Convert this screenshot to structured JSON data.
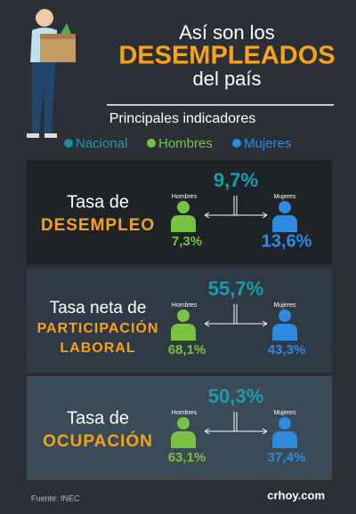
{
  "header": {
    "title_lines": [
      "Así son los",
      "DESEMPLEADOS",
      "del país"
    ],
    "subtitle": "Principales indicadores"
  },
  "legend": [
    "Nacional",
    "Hombres",
    "Mujeres"
  ],
  "indicators": [
    {
      "label_lines": [
        "Tasa de",
        "DESEMPLEO"
      ],
      "nacional": "9,7%",
      "hombres_label": "Hombres",
      "hombres": "7,3%",
      "mujeres_label": "Mujeres",
      "mujeres": "13,6%"
    },
    {
      "label_lines": [
        "Tasa neta de",
        "PARTICIPACIÓN",
        "LABORAL"
      ],
      "nacional": "55,7%",
      "hombres_label": "Hombres",
      "hombres": "68,1%",
      "mujeres_label": "Mujeres",
      "mujeres": "43,3%"
    },
    {
      "label_lines": [
        "Tasa de",
        "OCUPACIÓN"
      ],
      "nacional": "50,3%",
      "hombres_label": "Hombres",
      "hombres": "63,1%",
      "mujeres_label": "Mujeres",
      "mujeres": "37,4%"
    }
  ],
  "footer": {
    "source": "Fuente: INEC",
    "brand": "crhoy.com"
  }
}
